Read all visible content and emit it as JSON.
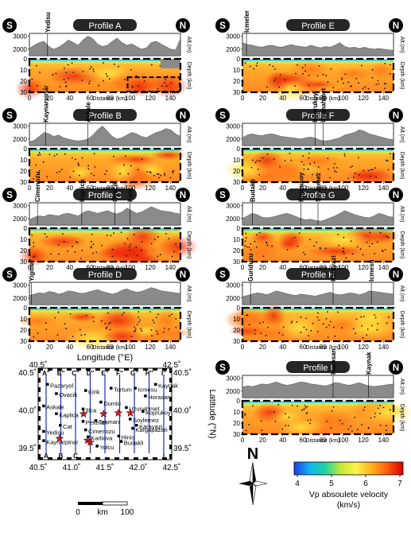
{
  "profiles": [
    {
      "id": "A",
      "title": "Profile A",
      "left_end": "S",
      "right_end": "N",
      "towns": [
        {
          "name": "Yedisu",
          "km": 18
        }
      ],
      "topo": [
        2050,
        2300,
        2500,
        2600,
        2200,
        2000,
        2150,
        2400,
        2700,
        2500,
        2300,
        2700,
        3000,
        2800,
        2400,
        2200,
        2300,
        2600,
        2850,
        2500,
        2300,
        2400,
        2200,
        2000,
        2100,
        2500,
        2600,
        2400,
        2200,
        2000,
        1950,
        2800
      ],
      "dashed_inset": true
    },
    {
      "id": "E",
      "title": "Profile E",
      "left_end": "S",
      "right_end": "N",
      "towns": [
        {
          "name": "Icmeler",
          "km": 4
        }
      ],
      "topo": [
        2500,
        2350,
        2300,
        2200,
        2150,
        2250,
        2300,
        2200,
        2150,
        2250,
        2350,
        2250,
        2200,
        2150,
        2300,
        2200,
        2100,
        2200,
        2150,
        2300,
        2500,
        2200,
        2100,
        2150,
        2050,
        2150,
        2050,
        2000,
        2050,
        2000,
        1950,
        1900
      ]
    },
    {
      "id": "B",
      "title": "Profile B",
      "left_end": "S",
      "right_end": "N",
      "towns": [
        {
          "name": "Kaynarpinar",
          "km": 16
        },
        {
          "name": "Askale",
          "km": 58
        }
      ],
      "topo": [
        1800,
        1900,
        2200,
        2500,
        2400,
        2200,
        2300,
        2100,
        2000,
        1900,
        1850,
        1900,
        2000,
        2300,
        2700,
        3000,
        2600,
        2200,
        2000,
        2100,
        2300,
        2500,
        2400,
        2200,
        2100,
        2300,
        2500,
        2600,
        2800,
        2700,
        2400,
        2200
      ]
    },
    {
      "id": "F",
      "title": "Profile F",
      "left_end": "S",
      "right_end": "N",
      "towns": [
        {
          "name": "Koprukoy",
          "km": 72
        },
        {
          "name": "Uzunahmet",
          "km": 80
        }
      ],
      "topo": [
        2100,
        2300,
        2400,
        2300,
        2250,
        2350,
        2400,
        2300,
        2200,
        2150,
        2100,
        2050,
        2000,
        2100,
        2150,
        2050,
        1900,
        1850,
        1900,
        2000,
        2100,
        2300,
        2400,
        2500,
        2700,
        2600,
        2400,
        2300,
        2200,
        2100,
        2000,
        1950
      ]
    },
    {
      "id": "C",
      "title": "Profile C",
      "left_end": "S",
      "right_end": "N",
      "towns": [
        {
          "name": "Cimenozu",
          "km": 8
        },
        {
          "name": "Kaplica",
          "km": 52
        },
        {
          "name": "Ovacik",
          "km": 85
        },
        {
          "name": "Kirik",
          "km": 100
        }
      ],
      "topo": [
        1900,
        2100,
        2200,
        2150,
        2300,
        2250,
        2200,
        2350,
        2400,
        2300,
        2200,
        2450,
        2600,
        2500,
        2400,
        2500,
        2600,
        2450,
        2350,
        2500,
        2800,
        2600,
        2400,
        2500,
        2700,
        2900,
        2750,
        2600,
        2550,
        2500,
        2400,
        2350
      ]
    },
    {
      "id": "G",
      "title": "Profile G",
      "left_end": "S",
      "right_end": "N",
      "towns": [
        {
          "name": "Budakli",
          "km": 10
        },
        {
          "name": "Koprukoy",
          "km": 58
        },
        {
          "name": "Soylemez",
          "km": 75
        }
      ],
      "topo": [
        2000,
        2200,
        2400,
        2300,
        2100,
        2050,
        2100,
        2200,
        2300,
        2400,
        2300,
        2150,
        2000,
        1900,
        1950,
        1850,
        1800,
        1900,
        2050,
        2200,
        2400,
        2600,
        2450,
        2300,
        2200,
        2100,
        2050,
        2200,
        2400,
        2300,
        2150,
        2100
      ]
    },
    {
      "id": "D",
      "title": "Profile D",
      "left_end": "S",
      "right_end": "N",
      "towns": [
        {
          "name": "Yigitler",
          "km": 2
        }
      ],
      "topo": [
        2200,
        2300,
        2400,
        2350,
        2500,
        2450,
        2300,
        2400,
        2550,
        2500,
        2400,
        2350,
        2450,
        2550,
        2650,
        2500,
        2400,
        2300,
        2400,
        2600,
        2700,
        2550,
        2450,
        2500,
        2650,
        2800,
        2700,
        2550,
        2500,
        2450,
        2400,
        2350
      ]
    },
    {
      "id": "H",
      "title": "Profile H",
      "left_end": "S",
      "right_end": "N",
      "towns": [
        {
          "name": "Guriduzu",
          "km": 8
        },
        {
          "name": "Karayazi",
          "km": 90
        },
        {
          "name": "Icmesu",
          "km": 128
        }
      ],
      "topo": [
        2100,
        2200,
        2300,
        2400,
        2350,
        2250,
        2400,
        2550,
        2450,
        2350,
        2250,
        2200,
        2300,
        2250,
        2200,
        2150,
        2250,
        2350,
        2450,
        2300,
        2250,
        2300,
        2400,
        2350,
        2250,
        2350,
        2550,
        2500,
        2450,
        2400,
        2350,
        2300
      ]
    },
    {
      "id": "I",
      "title": "Profile I",
      "left_end": "S",
      "right_end": "N",
      "towns": [
        {
          "name": "Horosan",
          "km": 90
        },
        {
          "name": "Kaynak",
          "km": 125
        }
      ],
      "topo": [
        2300,
        2400,
        2350,
        2450,
        2550,
        2500,
        2600,
        2700,
        2550,
        2450,
        2500,
        2600,
        2700,
        2650,
        2550,
        2500,
        2450,
        2400,
        2500,
        2650,
        2600,
        2500,
        2450,
        2550,
        2650,
        2500,
        2400,
        2350,
        2400,
        2450,
        2500,
        2550
      ]
    }
  ],
  "axes": {
    "alt_label": "Alt.(m)",
    "depth_label": "Depth (km)",
    "distance_label": "Distance (km)",
    "alt_ticks": [
      "2000",
      "3000"
    ],
    "depth_ticks": [
      "0",
      "10",
      "20",
      "30"
    ],
    "distance_ticks": [
      "0",
      "20",
      "40",
      "60",
      "80",
      "100",
      "120",
      "140"
    ]
  },
  "map": {
    "top_title": "Longitude (°E)",
    "side_title": "Latitude (°N)",
    "lon_top": [
      "40.5˚",
      "42.5˚"
    ],
    "lon_bottom": [
      "40.5˚",
      "41.0˚",
      "41.5˚",
      "42.0˚",
      "42.5˚"
    ],
    "lat_left": [
      "40.5˚",
      "40.0˚",
      "39.5˚"
    ],
    "lat_right": [
      "40.5˚",
      "40.0˚",
      "39.5˚"
    ],
    "profile_top": [
      "A''",
      "B''",
      "C''",
      "D''",
      "E''",
      "F''",
      "G''",
      "H''",
      "I''"
    ],
    "profile_bottom": [
      "A",
      "B",
      "C",
      "I"
    ],
    "towns": [
      "Pazaryol",
      "Ovacik",
      "Kirik",
      "Tortum",
      "Icmesu",
      "Horasan",
      "Askale",
      "Dumlu",
      "Ilica",
      "Uzunahmet",
      "Koprukoy",
      "Kaplica",
      "Soylemez",
      "Pekman",
      "Karayazi",
      "Cat",
      "Yedisu",
      "Cimenozu",
      "Karliova",
      "Hinis",
      "Budakli",
      "Kaynarpinar",
      "Yolcu",
      "Tekman",
      "Kaynak",
      "Kargapazari"
    ],
    "scale_ticks": [
      "0",
      "km",
      "100"
    ]
  },
  "legend": {
    "north": "N",
    "ticks": [
      "4",
      "5",
      "6",
      "7"
    ],
    "label_line1": "Vp absoulete velocity",
    "label_line2": "(km/s)",
    "colors": [
      "#1d3fe0",
      "#13b4f0",
      "#20d4a0",
      "#c4e93a",
      "#fff24a",
      "#ffb020",
      "#ff5a10",
      "#d60000"
    ]
  }
}
